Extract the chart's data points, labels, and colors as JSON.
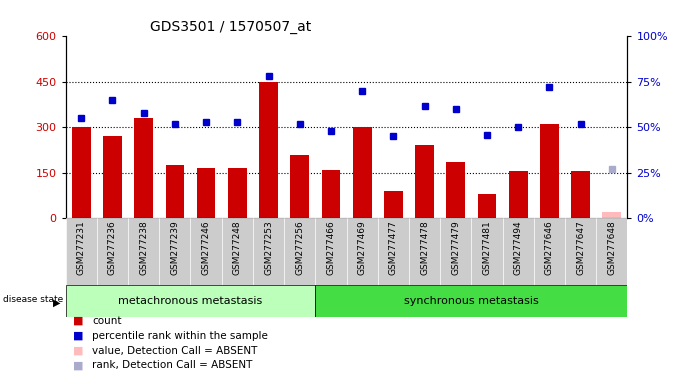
{
  "title": "GDS3501 / 1570507_at",
  "samples": [
    "GSM277231",
    "GSM277236",
    "GSM277238",
    "GSM277239",
    "GSM277246",
    "GSM277248",
    "GSM277253",
    "GSM277256",
    "GSM277466",
    "GSM277469",
    "GSM277477",
    "GSM277478",
    "GSM277479",
    "GSM277481",
    "GSM277494",
    "GSM277646",
    "GSM277647",
    "GSM277648"
  ],
  "bar_values": [
    300,
    270,
    330,
    175,
    165,
    165,
    450,
    210,
    160,
    300,
    90,
    240,
    185,
    80,
    155,
    310,
    155,
    20
  ],
  "dot_values": [
    55,
    65,
    58,
    52,
    53,
    53,
    78,
    52,
    48,
    70,
    45,
    62,
    60,
    46,
    50,
    72,
    52,
    27
  ],
  "absent_indices": [
    17
  ],
  "group1_label": "metachronous metastasis",
  "group2_label": "synchronous metastasis",
  "group1_count": 8,
  "group2_count": 10,
  "bar_color": "#cc0000",
  "dot_color": "#0000cc",
  "absent_bar_color": "#ffbbbb",
  "absent_dot_color": "#aaaacc",
  "group1_bg": "#bbffbb",
  "group2_bg": "#44dd44",
  "tick_bg": "#cccccc",
  "ylim_left": [
    0,
    600
  ],
  "ylim_right": [
    0,
    100
  ],
  "yticks_left": [
    0,
    150,
    300,
    450,
    600
  ],
  "yticks_right": [
    0,
    25,
    50,
    75,
    100
  ],
  "hlines": [
    150,
    300,
    450
  ],
  "legend_items": [
    "count",
    "percentile rank within the sample",
    "value, Detection Call = ABSENT",
    "rank, Detection Call = ABSENT"
  ],
  "legend_colors": [
    "#cc0000",
    "#0000cc",
    "#ffbbbb",
    "#aaaacc"
  ]
}
